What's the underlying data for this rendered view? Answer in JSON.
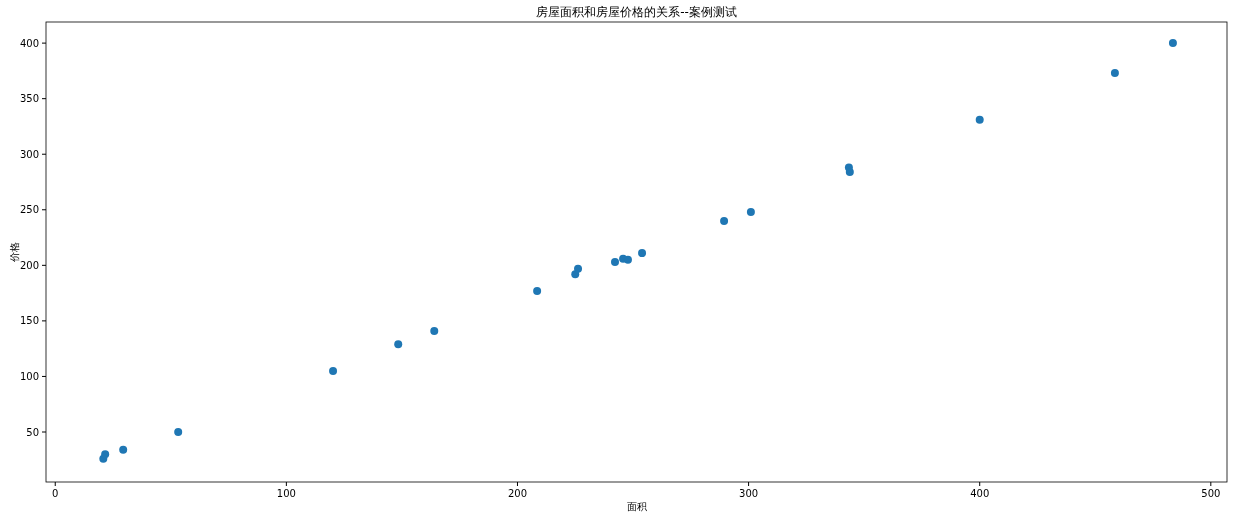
{
  "chart_data": {
    "type": "scatter",
    "title": "房屋面积和房屋价格的关系--案例测试",
    "xlabel": "面积",
    "ylabel": "价格",
    "x": [
      20.8,
      21.6,
      29.4,
      53.2,
      120.2,
      148.4,
      164,
      208.5,
      225,
      226.2,
      242.2,
      245.7,
      247.8,
      253.9,
      289.4,
      301,
      343.4,
      343.8,
      400,
      458.5,
      483.6
    ],
    "series": [
      {
        "color": "#1f77b4",
        "values": [
          26,
          30,
          34,
          50,
          105,
          129,
          141,
          177,
          192,
          197,
          203,
          206,
          205,
          211,
          240,
          248,
          288,
          284,
          331,
          373,
          400
        ]
      }
    ],
    "xlim": [
      -4,
      507
    ],
    "ylim": [
      5,
      419
    ],
    "xticks": [
      0,
      100,
      200,
      300,
      400,
      500
    ],
    "yticks": [
      50,
      100,
      150,
      200,
      250,
      300,
      350,
      400
    ],
    "marker": "circle",
    "grid": false
  }
}
